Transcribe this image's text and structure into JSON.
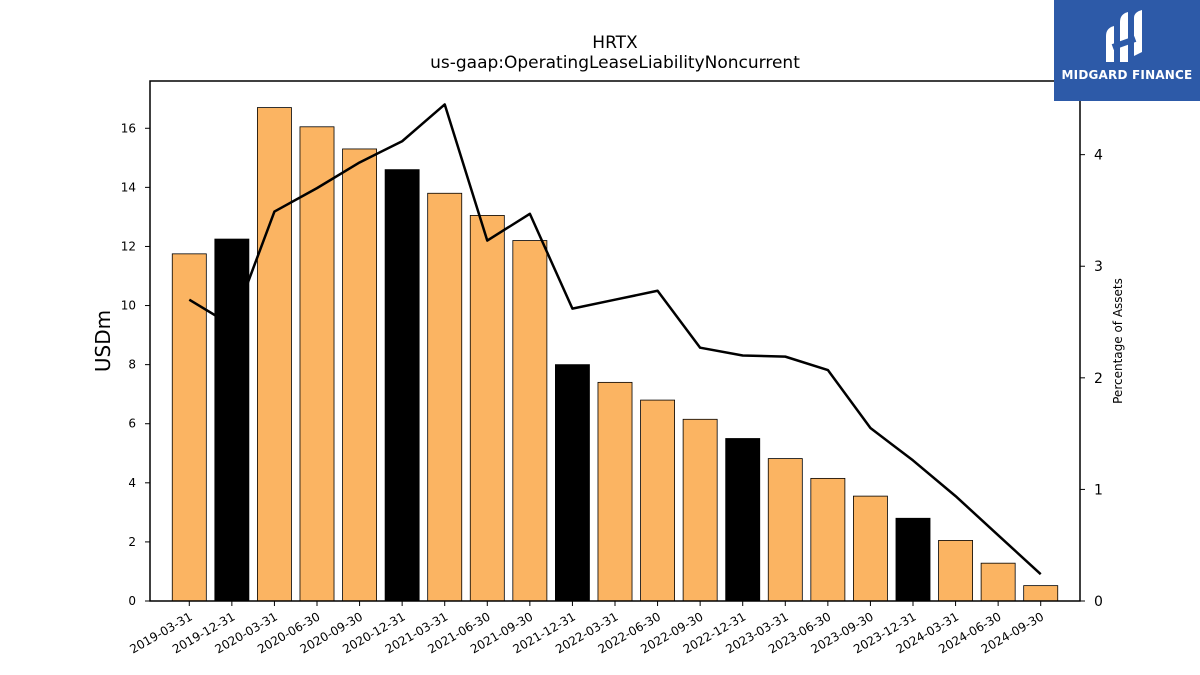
{
  "chart_data": {
    "type": "bar",
    "title": "HRTX",
    "subtitle": "us-gaap:OperatingLeaseLiabilityNoncurrent",
    "ylabel": "USDm",
    "y2label": "Percentage of Assets",
    "ylim": [
      0,
      17.6
    ],
    "y2lim": [
      0,
      4.66
    ],
    "yticks": [
      0,
      2,
      4,
      6,
      8,
      10,
      12,
      14,
      16
    ],
    "y2ticks": [
      0,
      1,
      2,
      3,
      4
    ],
    "categories": [
      "2019-03-31",
      "2019-12-31",
      "2020-03-31",
      "2020-06-30",
      "2020-09-30",
      "2020-12-31",
      "2021-03-31",
      "2021-06-30",
      "2021-09-30",
      "2021-12-31",
      "2022-03-31",
      "2022-06-30",
      "2022-09-30",
      "2022-12-31",
      "2023-03-31",
      "2023-06-30",
      "2023-09-30",
      "2023-12-31",
      "2024-03-31",
      "2024-06-30",
      "2024-09-30"
    ],
    "series": [
      {
        "kind": "bar",
        "axis": "left",
        "values": [
          11.75,
          12.25,
          16.7,
          16.05,
          15.3,
          14.6,
          13.8,
          13.05,
          12.2,
          8.0,
          7.4,
          6.8,
          6.15,
          5.5,
          4.82,
          4.15,
          3.55,
          2.8,
          2.05,
          1.28,
          0.52
        ]
      },
      {
        "kind": "line",
        "axis": "right",
        "values": [
          2.7,
          2.47,
          3.49,
          3.7,
          3.93,
          4.12,
          4.45,
          3.23,
          3.47,
          2.62,
          2.7,
          2.78,
          2.27,
          2.2,
          2.19,
          2.07,
          1.55,
          1.26,
          0.94,
          0.59,
          0.24
        ]
      }
    ],
    "colors": {
      "bar": "#fbb462",
      "bar_highlight": "#000000",
      "line": "#000000"
    },
    "highlighted_categories": [
      "2019-12-31",
      "2020-12-31",
      "2021-12-31",
      "2022-12-31",
      "2023-12-31"
    ],
    "legend": "none",
    "grid": false
  },
  "logo": {
    "text": "MIDGARD FINANCE",
    "background": "#2d5aa8"
  }
}
